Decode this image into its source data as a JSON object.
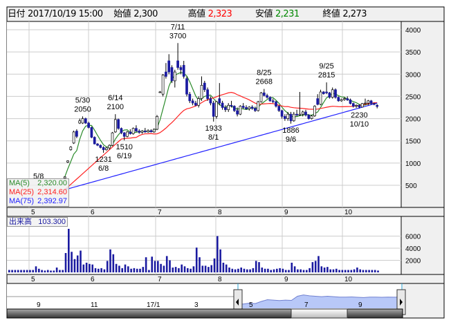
{
  "header": {
    "date_label": "日付",
    "date_value": "2017/10/19 15:00",
    "open_label": "始値",
    "open_value": "2,300",
    "high_label": "高値",
    "high_value": "2,323",
    "low_label": "安値",
    "low_value": "2,231",
    "close_label": "終値",
    "close_value": "2,273"
  },
  "legend": {
    "ma5_label": "MA(5)",
    "ma5_value": "2,320.00",
    "ma25_label": "MA(25)",
    "ma25_value": "2,314.60",
    "ma75_label": "MA(75)",
    "ma75_value": "2,392.97"
  },
  "volume_label": {
    "label": "出来高",
    "value": "103.300"
  },
  "colors": {
    "ma5": "#2a8a2a",
    "ma25": "#ff2020",
    "ma75": "#2020ff",
    "candle_down": "#1a1aa0",
    "candle_up": "#ffffff",
    "volume": "#1a1aa0",
    "high_value": "#ff0000",
    "low_value": "#008000",
    "navigator_fill": "#b8c8f8"
  },
  "chart_data": [
    {
      "type": "candlestick",
      "ylim": [
        0,
        4000
      ],
      "yticks": [
        "4000",
        "3500",
        "3000",
        "2500",
        "2000",
        "1500",
        "1000",
        "500"
      ],
      "ytick_values": [
        4000,
        3500,
        3000,
        2500,
        2000,
        1500,
        1000,
        500
      ],
      "month_ticks": [
        "5",
        "6",
        "7",
        "8",
        "9",
        "10"
      ],
      "grid": true,
      "ohlc": [
        [
          660,
          700,
          650,
          690
        ],
        [
          1020,
          1060,
          1000,
          1050
        ],
        [
          1300,
          1380,
          1280,
          1360
        ],
        [
          1450,
          1730,
          1430,
          1700
        ],
        [
          1720,
          1760,
          1560,
          1600
        ],
        [
          1900,
          2000,
          1880,
          1950
        ],
        [
          1900,
          2050,
          1880,
          2000
        ],
        [
          2000,
          2020,
          1880,
          1900
        ],
        [
          1900,
          1930,
          1780,
          1800
        ],
        [
          1800,
          1820,
          1560,
          1580
        ],
        [
          1580,
          1600,
          1420,
          1430
        ],
        [
          1430,
          1450,
          1380,
          1400
        ],
        [
          1400,
          1420,
          1330,
          1350
        ],
        [
          1350,
          1380,
          1231,
          1300
        ],
        [
          1300,
          1360,
          1280,
          1340
        ],
        [
          1340,
          1420,
          1300,
          1400
        ],
        [
          1400,
          1700,
          1380,
          1680
        ],
        [
          1700,
          2100,
          1680,
          1980
        ],
        [
          1980,
          2000,
          1750,
          1780
        ],
        [
          1780,
          1800,
          1650,
          1680
        ],
        [
          1680,
          1700,
          1510,
          1600
        ],
        [
          1600,
          1720,
          1580,
          1700
        ],
        [
          1700,
          1760,
          1640,
          1660
        ],
        [
          1660,
          1800,
          1640,
          1780
        ],
        [
          1780,
          1850,
          1700,
          1720
        ],
        [
          1720,
          1760,
          1660,
          1690
        ],
        [
          1690,
          1740,
          1660,
          1720
        ],
        [
          1720,
          1790,
          1680,
          1700
        ],
        [
          1700,
          1760,
          1680,
          1730
        ],
        [
          1730,
          1760,
          1690,
          1700
        ],
        [
          1700,
          1780,
          1680,
          1760
        ],
        [
          1760,
          2080,
          1740,
          2050
        ],
        [
          2600,
          2620,
          2580,
          2600
        ],
        [
          2550,
          3000,
          2500,
          2980
        ],
        [
          3050,
          3250,
          2900,
          2950
        ],
        [
          3300,
          3450,
          3000,
          3050
        ],
        [
          3150,
          3200,
          2800,
          2850
        ],
        [
          2850,
          3100,
          2700,
          3050
        ],
        [
          3300,
          3700,
          3100,
          3150
        ],
        [
          3150,
          3200,
          3000,
          3100
        ],
        [
          3200,
          3300,
          2900,
          2950
        ],
        [
          2900,
          2950,
          2500,
          2550
        ],
        [
          2550,
          2600,
          2350,
          2400
        ],
        [
          2400,
          2450,
          2300,
          2350
        ],
        [
          2350,
          2400,
          2280,
          2300
        ],
        [
          2300,
          2500,
          2250,
          2450
        ],
        [
          2450,
          2950,
          2400,
          2750
        ],
        [
          2800,
          2850,
          2600,
          2650
        ],
        [
          2650,
          2700,
          2400,
          2450
        ],
        [
          2450,
          2500,
          2300,
          2350
        ],
        [
          2350,
          2400,
          1933,
          2050
        ],
        [
          2050,
          2400,
          2000,
          2380
        ],
        [
          2450,
          2800,
          2300,
          2350
        ],
        [
          2350,
          2400,
          2200,
          2250
        ],
        [
          2250,
          2300,
          2150,
          2200
        ],
        [
          2200,
          2350,
          2150,
          2300
        ],
        [
          2300,
          2400,
          2250,
          2280
        ],
        [
          2280,
          2300,
          2150,
          2180
        ],
        [
          2180,
          2250,
          2050,
          2100
        ],
        [
          2100,
          2300,
          2080,
          2280
        ],
        [
          2280,
          2350,
          2220,
          2250
        ],
        [
          2250,
          2300,
          2200,
          2220
        ],
        [
          2220,
          2280,
          2180,
          2260
        ],
        [
          2260,
          2300,
          2200,
          2230
        ],
        [
          2230,
          2270,
          2150,
          2180
        ],
        [
          2180,
          2400,
          2160,
          2380
        ],
        [
          2380,
          2600,
          2360,
          2580
        ],
        [
          2580,
          2668,
          2500,
          2520
        ],
        [
          2520,
          2560,
          2450,
          2480
        ],
        [
          2480,
          2500,
          2380,
          2400
        ],
        [
          2400,
          2450,
          2350,
          2380
        ],
        [
          2380,
          2400,
          2250,
          2280
        ],
        [
          2280,
          2300,
          2150,
          2180
        ],
        [
          2180,
          2200,
          2000,
          2050
        ],
        [
          2050,
          2100,
          1950,
          2000
        ],
        [
          2000,
          2150,
          1950,
          2100
        ],
        [
          2100,
          2150,
          1886,
          1950
        ],
        [
          1950,
          2150,
          1930,
          2100
        ],
        [
          2100,
          2200,
          2050,
          2080
        ],
        [
          2080,
          2600,
          2060,
          2100
        ],
        [
          2100,
          2180,
          2050,
          2150
        ],
        [
          2150,
          2200,
          2050,
          2080
        ],
        [
          2080,
          2100,
          1980,
          2000
        ],
        [
          2000,
          2080,
          1980,
          2060
        ],
        [
          2060,
          2300,
          2040,
          2280
        ],
        [
          2450,
          2550,
          2300,
          2320
        ],
        [
          2320,
          2650,
          2300,
          2600
        ],
        [
          2600,
          2620,
          2540,
          2560
        ],
        [
          2600,
          2815,
          2550,
          2580
        ],
        [
          2580,
          2600,
          2450,
          2480
        ],
        [
          2480,
          2700,
          2450,
          2650
        ],
        [
          2650,
          2680,
          2450,
          2480
        ],
        [
          2480,
          2500,
          2380,
          2400
        ],
        [
          2400,
          2450,
          2380,
          2430
        ],
        [
          2430,
          2480,
          2400,
          2450
        ],
        [
          2450,
          2500,
          2400,
          2420
        ],
        [
          2420,
          2450,
          2320,
          2340
        ],
        [
          2340,
          2360,
          2250,
          2280
        ],
        [
          2280,
          2320,
          2240,
          2300
        ],
        [
          2300,
          2320,
          2230,
          2260
        ],
        [
          2260,
          2350,
          2250,
          2340
        ],
        [
          2340,
          2450,
          2320,
          2350
        ],
        [
          2350,
          2420,
          2300,
          2400
        ],
        [
          2400,
          2420,
          2320,
          2340
        ],
        [
          2340,
          2360,
          2300,
          2320
        ],
        [
          2300,
          2323,
          2231,
          2273
        ]
      ],
      "annotations": [
        {
          "index": 0,
          "date": "5/8",
          "price": "",
          "type": "low"
        },
        {
          "index": 6,
          "date": "5/30",
          "price": "2050",
          "type": "high"
        },
        {
          "index": 13,
          "date": "6/8",
          "price": "1231",
          "type": "low"
        },
        {
          "index": 17,
          "date": "6/14",
          "price": "2100",
          "type": "high"
        },
        {
          "index": 20,
          "date": "6/19",
          "price": "1510",
          "type": "low"
        },
        {
          "index": 38,
          "date": "7/11",
          "price": "3700",
          "type": "high"
        },
        {
          "index": 50,
          "date": "8/1",
          "price": "1933",
          "type": "low"
        },
        {
          "index": 67,
          "date": "8/25",
          "price": "2668",
          "type": "high"
        },
        {
          "index": 76,
          "date": "9/6",
          "price": "1886",
          "type": "low"
        },
        {
          "index": 88,
          "date": "9/25",
          "price": "2815",
          "type": "high"
        },
        {
          "index": 99,
          "date": "10/10",
          "price": "2230",
          "type": "low"
        }
      ],
      "moving_averages": [
        5,
        25,
        75
      ]
    },
    {
      "type": "bar",
      "ylim": [
        0,
        8000
      ],
      "yticks": [
        "6000",
        "4000",
        "2000"
      ],
      "ytick_values": [
        6000,
        4000,
        2000
      ],
      "month_ticks": [
        "5",
        "6",
        "7",
        "8",
        "9",
        "10"
      ],
      "values": [
        400,
        400,
        400,
        400,
        400,
        400,
        400,
        400,
        400,
        1000,
        600,
        400,
        300,
        400,
        300,
        300,
        800,
        400,
        400,
        3200,
        7200,
        3400,
        2200,
        2800,
        3600,
        1300,
        1600,
        1400,
        1300,
        700,
        600,
        700,
        500,
        1900,
        3800,
        3000,
        1400,
        1100,
        700,
        1300,
        1000,
        600,
        700,
        600,
        600,
        900,
        2500,
        400,
        2600,
        1900,
        1900,
        1400,
        1100,
        2700,
        2000,
        800,
        900,
        700,
        1300,
        1000,
        700,
        600,
        1000,
        4100,
        2500,
        1100,
        1100,
        900,
        1200,
        2300,
        6000,
        3800,
        1600,
        1300,
        800,
        600,
        500,
        600,
        800,
        600,
        500,
        500,
        700,
        1900,
        1700,
        800,
        600,
        600,
        400,
        500,
        600,
        700,
        600,
        400,
        400,
        1600,
        1000,
        500,
        500,
        400,
        400,
        700,
        1700,
        1900,
        2700,
        1000,
        800,
        900,
        500,
        500,
        600,
        400,
        400,
        400,
        400,
        400,
        500,
        800,
        500,
        400,
        400,
        400,
        400,
        400,
        300
      ]
    }
  ],
  "navigator": {
    "labels": [
      "9",
      "11",
      "17/1",
      "3",
      "5",
      "7",
      "9"
    ],
    "series": [
      2000,
      2000,
      2100,
      2050,
      2300,
      2500,
      2450,
      2400,
      2450,
      2420,
      2900,
      3050,
      2950,
      2900,
      2850,
      2900,
      2850,
      2800,
      2800,
      2820,
      2780,
      2750,
      2800,
      2800,
      2780,
      2800,
      2790,
      2800
    ]
  }
}
